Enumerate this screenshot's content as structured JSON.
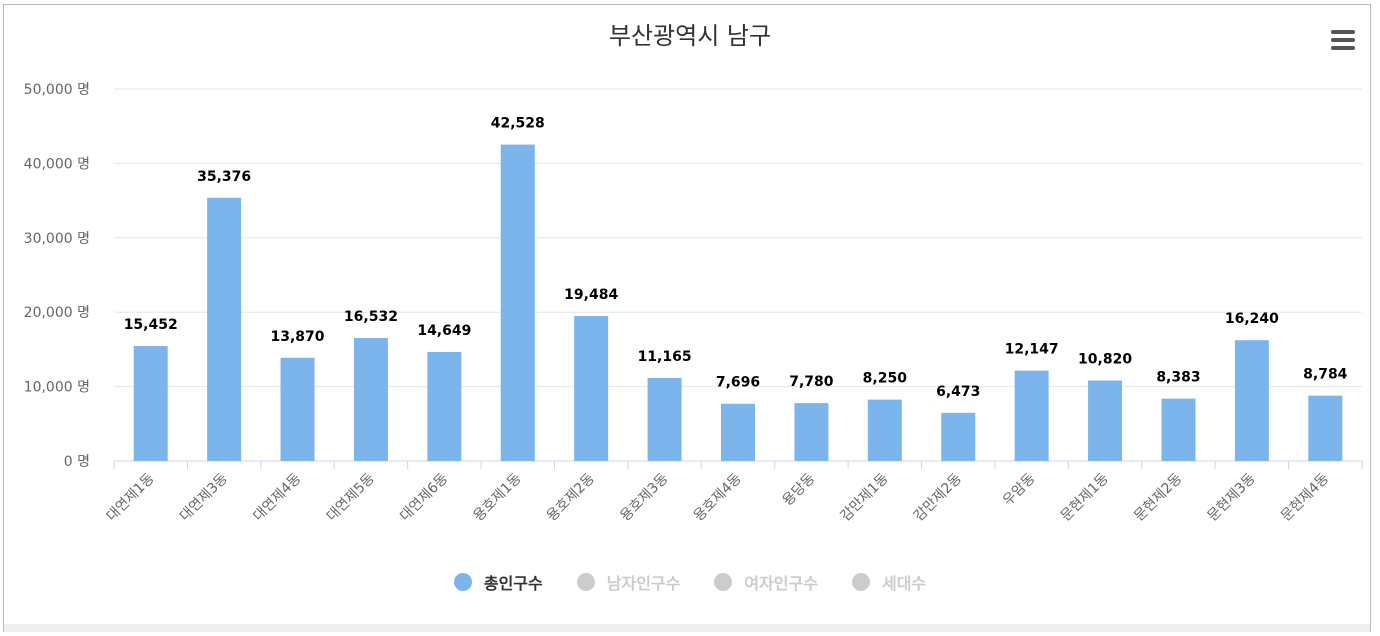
{
  "chart_data": {
    "type": "bar",
    "title": "부산광역시 남구",
    "categories": [
      "대연제1동",
      "대연제3동",
      "대연제4동",
      "대연제5동",
      "대연제6동",
      "용호제1동",
      "용호제2동",
      "용호제3동",
      "용호제4동",
      "용당동",
      "감만제1동",
      "감만제2동",
      "우암동",
      "문현제1동",
      "문현제2동",
      "문현제3동",
      "문현제4동"
    ],
    "series": [
      {
        "name": "총인구수",
        "values": [
          15452,
          35376,
          13870,
          16532,
          14649,
          42528,
          19484,
          11165,
          7696,
          7780,
          8250,
          6473,
          12147,
          10820,
          8383,
          16240,
          8784
        ]
      }
    ],
    "data_labels": [
      "15,452",
      "35,376",
      "13,870",
      "16,532",
      "14,649",
      "42,528",
      "19,484",
      "11,165",
      "7,696",
      "7,780",
      "8,250",
      "6,473",
      "12,147",
      "10,820",
      "8,383",
      "16,240",
      "8,784"
    ],
    "y_ticks": [
      0,
      10000,
      20000,
      30000,
      40000,
      50000
    ],
    "y_tick_labels": [
      "0 명",
      "10,000 명",
      "20,000 명",
      "30,000 명",
      "40,000 명",
      "50,000 명"
    ],
    "ylim": [
      0,
      50000
    ],
    "xlabel": "",
    "ylabel": "",
    "grid": true,
    "legend_position": "bottom-center"
  },
  "legend": [
    {
      "label": "총인구수",
      "color": "#7cb5ec",
      "active": true
    },
    {
      "label": "남자인구수",
      "color": "#cccccc",
      "active": false
    },
    {
      "label": "여자인구수",
      "color": "#cccccc",
      "active": false
    },
    {
      "label": "세대수",
      "color": "#cccccc",
      "active": false
    }
  ],
  "colors": {
    "bar": "#7cb5ec",
    "grid": "#e6e6e6",
    "axis": "#ccd6eb",
    "text": "#666666",
    "label": "#000000",
    "inactive": "#cccccc"
  }
}
